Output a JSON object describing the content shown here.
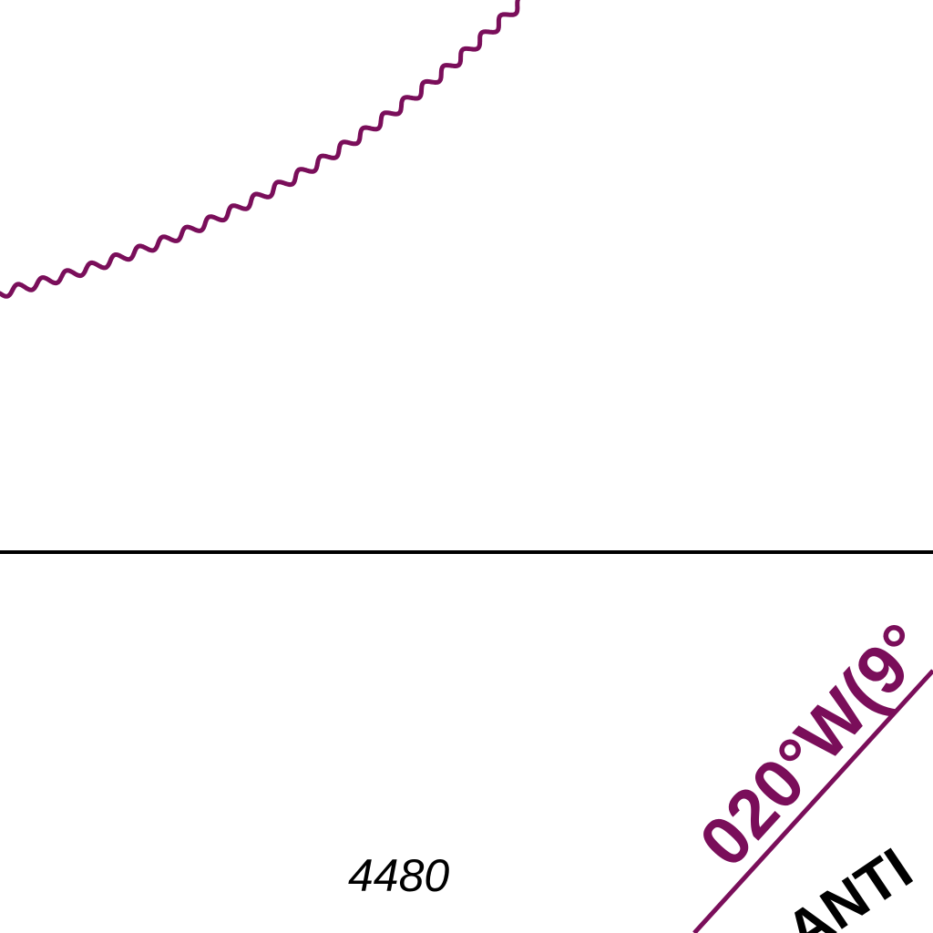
{
  "colors": {
    "background": "#ffffff",
    "boundary": "#000000",
    "route": "#7a0e5a",
    "depth_text": "#000000",
    "fir_text": "#000000"
  },
  "features": {
    "limit_line": {
      "name": "wavy-limit-boundary",
      "style": "sinuous"
    },
    "horizontal_boundary": {
      "name": "black-boundary-line"
    },
    "route": {
      "name": "magenta-route-line"
    }
  },
  "labels": {
    "depth": "4480",
    "route": "020°W(9°",
    "fir": "ANTI"
  }
}
